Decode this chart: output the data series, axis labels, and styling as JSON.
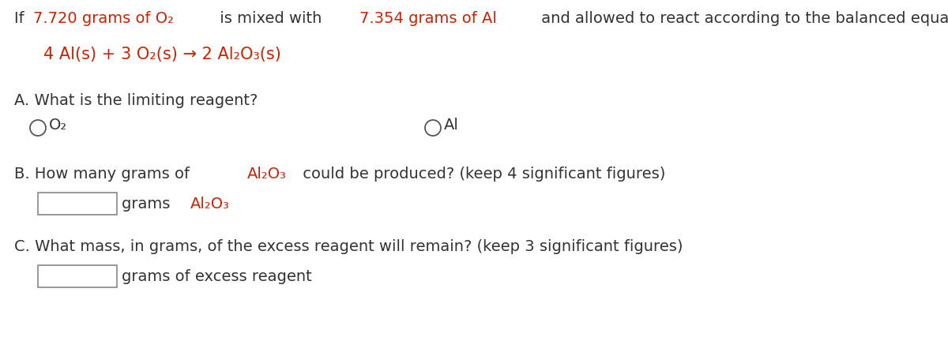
{
  "bg_color": "#ffffff",
  "text_color": "#333333",
  "red_color": "#cc2200",
  "fontsize": 14,
  "line1_segments": [
    {
      "text": "If ",
      "color": "#333333"
    },
    {
      "text": "7.720 grams of O₂",
      "color": "#cc2200"
    },
    {
      "text": " is mixed with ",
      "color": "#333333"
    },
    {
      "text": "7.354 grams of Al",
      "color": "#cc2200"
    },
    {
      "text": " and allowed to react according to the balanced equation:",
      "color": "#333333"
    }
  ],
  "equation": "4 Al(s) + 3 O₂(s) → 2 Al₂O₃(s)",
  "section_A": "A. What is the limiting reagent?",
  "radio1_text": "O₂",
  "radio2_text": "Al",
  "sectionB_segments": [
    {
      "text": "B. How many grams of ",
      "color": "#333333"
    },
    {
      "text": "Al₂O₃",
      "color": "#cc2200"
    },
    {
      "text": " could be produced? (keep 4 significant figures)",
      "color": "#333333"
    }
  ],
  "box_B_label_segments": [
    {
      "text": "grams ",
      "color": "#333333"
    },
    {
      "text": "Al₂O₃",
      "color": "#cc2200"
    }
  ],
  "section_C": "C. What mass, in grams, of the excess reagent will remain? (keep 3 significant figures)",
  "box_C_label": "grams of excess reagent"
}
